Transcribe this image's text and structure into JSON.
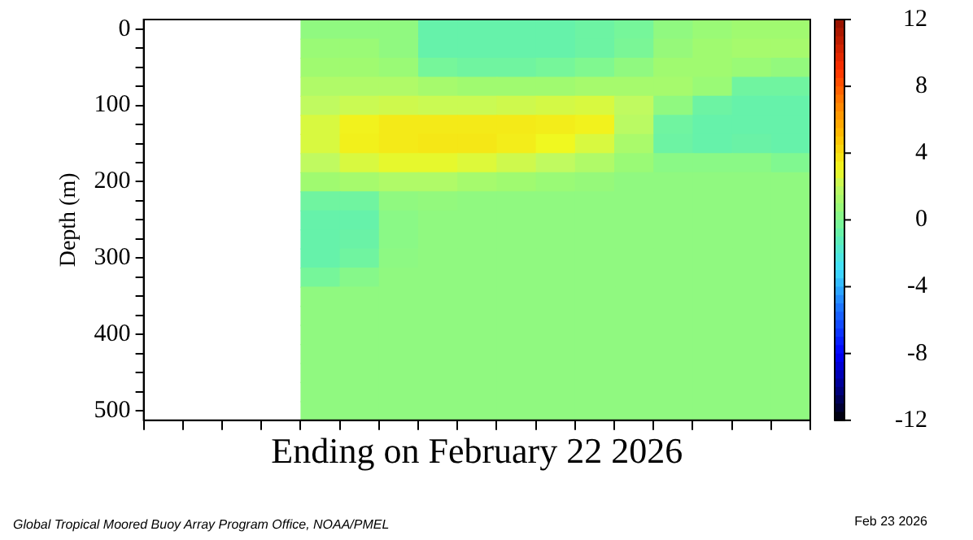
{
  "chart_data": {
    "type": "heatmap",
    "xlabel": "Ending on February 22 2026",
    "ylabel": "Depth (m)",
    "categories": [
      null,
      null,
      null,
      null,
      null,
      null,
      null,
      null,
      null,
      null,
      null,
      null,
      null,
      null,
      null,
      null,
      null
    ],
    "y_categories": [
      "0",
      null,
      null,
      null,
      "100",
      null,
      null,
      null,
      "200",
      null,
      null,
      null,
      "300",
      null,
      null,
      null,
      "400",
      null,
      null,
      null,
      "500"
    ],
    "cells": [
      [
        null,
        null,
        null,
        null,
        0.5,
        0.5,
        0.5,
        -0.8,
        -0.8,
        -0.8,
        -0.8,
        -0.6,
        -0.3,
        0.5,
        0.8,
        1,
        1
      ],
      [
        null,
        null,
        null,
        null,
        0.8,
        0.8,
        0.5,
        -0.8,
        -0.8,
        -0.8,
        -0.8,
        -0.6,
        -0.2,
        0.7,
        1,
        1.2,
        1.2
      ],
      [
        null,
        null,
        null,
        null,
        1,
        1,
        0.8,
        -0.3,
        -0.5,
        -0.5,
        -0.3,
        0,
        0.5,
        1,
        1,
        0.8,
        0.6
      ],
      [
        null,
        null,
        null,
        null,
        1.5,
        1.5,
        1.5,
        1.2,
        1,
        1,
        1,
        1.2,
        1.2,
        1.2,
        0.8,
        -0.5,
        -0.5
      ],
      [
        null,
        null,
        null,
        null,
        2,
        2.2,
        2.3,
        2.2,
        2.2,
        2.3,
        2.4,
        2.5,
        2,
        0.5,
        -0.6,
        -0.8,
        -0.8
      ],
      [
        null,
        null,
        null,
        null,
        2.5,
        3.2,
        3.5,
        3.5,
        3.5,
        3.5,
        3.4,
        3.2,
        1.8,
        -0.5,
        -0.8,
        -0.8,
        -0.8
      ],
      [
        null,
        null,
        null,
        null,
        2.5,
        3.3,
        3.5,
        3.6,
        3.6,
        3.4,
        3,
        2.5,
        1.3,
        -0.6,
        -0.8,
        -0.7,
        -0.8
      ],
      [
        null,
        null,
        null,
        null,
        2,
        2.5,
        2.8,
        2.8,
        2.6,
        2.3,
        2,
        1.5,
        0.8,
        0.3,
        0.3,
        0.3,
        0
      ],
      [
        null,
        null,
        null,
        null,
        1,
        1.2,
        1.5,
        1.5,
        1.2,
        1,
        0.8,
        0.7,
        0.5,
        0.5,
        0.5,
        0.5,
        0.5
      ],
      [
        null,
        null,
        null,
        null,
        -0.5,
        -0.5,
        0.5,
        0.6,
        0.5,
        0.5,
        0.5,
        0.5,
        0.5,
        0.5,
        0.5,
        0.5,
        0.5
      ],
      [
        null,
        null,
        null,
        null,
        -0.8,
        -0.8,
        0.3,
        0.5,
        0.5,
        0.5,
        0.5,
        0.5,
        0.5,
        0.5,
        0.5,
        0.5,
        0.5
      ],
      [
        null,
        null,
        null,
        null,
        -0.8,
        -0.7,
        0.3,
        0.5,
        0.5,
        0.5,
        0.5,
        0.5,
        0.5,
        0.5,
        0.5,
        0.5,
        0.5
      ],
      [
        null,
        null,
        null,
        null,
        -0.8,
        -0.5,
        0.4,
        0.5,
        0.5,
        0.5,
        0.5,
        0.5,
        0.5,
        0.5,
        0.5,
        0.5,
        0.5
      ],
      [
        null,
        null,
        null,
        null,
        -0.3,
        0.2,
        0.5,
        0.5,
        0.5,
        0.5,
        0.5,
        0.5,
        0.5,
        0.5,
        0.5,
        0.5,
        0.5
      ],
      [
        null,
        null,
        null,
        null,
        0.5,
        0.5,
        0.5,
        0.5,
        0.5,
        0.5,
        0.5,
        0.5,
        0.5,
        0.5,
        0.5,
        0.5,
        0.5
      ],
      [
        null,
        null,
        null,
        null,
        0.5,
        0.5,
        0.5,
        0.5,
        0.5,
        0.5,
        0.5,
        0.5,
        0.5,
        0.5,
        0.5,
        0.5,
        0.5
      ],
      [
        null,
        null,
        null,
        null,
        0.5,
        0.5,
        0.5,
        0.5,
        0.5,
        0.5,
        0.5,
        0.5,
        0.5,
        0.5,
        0.5,
        0.5,
        0.5
      ],
      [
        null,
        null,
        null,
        null,
        0.5,
        0.5,
        0.5,
        0.5,
        0.5,
        0.5,
        0.5,
        0.5,
        0.5,
        0.5,
        0.5,
        0.5,
        0.5
      ],
      [
        null,
        null,
        null,
        null,
        0.5,
        0.5,
        0.5,
        0.5,
        0.5,
        0.5,
        0.5,
        0.5,
        0.5,
        0.5,
        0.5,
        0.5,
        0.5
      ],
      [
        null,
        null,
        null,
        null,
        0.5,
        0.5,
        0.5,
        0.5,
        0.5,
        0.5,
        0.5,
        0.5,
        0.5,
        0.5,
        0.5,
        0.5,
        0.5
      ],
      [
        null,
        null,
        null,
        null,
        0.5,
        0.5,
        0.5,
        0.5,
        0.5,
        0.5,
        0.5,
        0.5,
        0.5,
        0.5,
        0.5,
        0.5,
        0.5
      ]
    ],
    "clim": [
      -12,
      12
    ],
    "cticks": [
      -12,
      -8,
      -4,
      0,
      4,
      8,
      12
    ],
    "annotations": [
      "Global Tropical Moored Buoy Array Program Office, NOAA/PMEL",
      "Feb 23 2026"
    ]
  }
}
